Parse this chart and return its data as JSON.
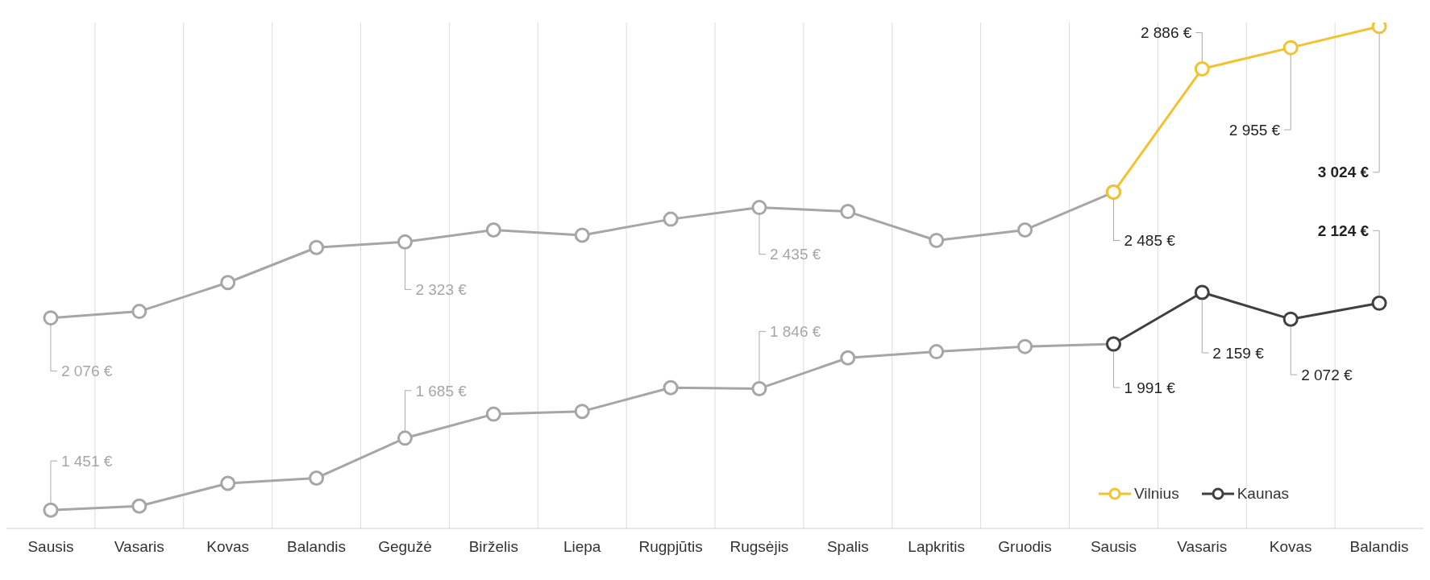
{
  "chart_data": {
    "type": "line",
    "categories": [
      "Sausis",
      "Vasaris",
      "Kovas",
      "Balandis",
      "Gegužė",
      "Birželis",
      "Liepa",
      "Rugpjūtis",
      "Rugsėjis",
      "Spalis",
      "Lapkritis",
      "Gruodis",
      "Sausis",
      "Vasaris",
      "Kovas",
      "Balandis"
    ],
    "series": [
      {
        "color": "#a6a6a6",
        "values": [
          2076,
          2097,
          2191,
          2305,
          2323,
          2362,
          2345,
          2397,
          2435,
          2422,
          2328,
          2362,
          2485,
          null,
          null,
          null
        ],
        "value_labels": [
          "2 076 €",
          null,
          null,
          null,
          "2 323 €",
          null,
          null,
          null,
          "2 435 €",
          null,
          null,
          null,
          null,
          null,
          null,
          null
        ]
      },
      {
        "color": "#a6a6a6",
        "values": [
          1451,
          1464,
          1538,
          1555,
          1685,
          1763,
          1772,
          1849,
          1846,
          1946,
          1966,
          1983,
          1991,
          null,
          null,
          null
        ],
        "value_labels": [
          "1 451 €",
          null,
          null,
          null,
          "1 685 €",
          null,
          null,
          null,
          "1 846 €",
          null,
          null,
          null,
          null,
          null,
          null,
          null
        ]
      },
      {
        "name": "Vilnius",
        "color": "#f2c230",
        "values": [
          null,
          null,
          null,
          null,
          null,
          null,
          null,
          null,
          null,
          null,
          null,
          null,
          2485,
          2886,
          2955,
          3024
        ],
        "value_labels": [
          null,
          null,
          null,
          null,
          null,
          null,
          null,
          null,
          null,
          null,
          null,
          null,
          "2 485 €",
          "2 886 €",
          "2 955 €",
          "3 024 €"
        ]
      },
      {
        "name": "Kaunas",
        "color": "#404040",
        "values": [
          null,
          null,
          null,
          null,
          null,
          null,
          null,
          null,
          null,
          null,
          null,
          null,
          1991,
          2159,
          2072,
          2124
        ],
        "value_labels": [
          null,
          null,
          null,
          null,
          null,
          null,
          null,
          null,
          null,
          null,
          null,
          null,
          "1 991 €",
          "2 159 €",
          "2 072 €",
          "2 124 €"
        ]
      }
    ],
    "marker": "circle",
    "line_style": "solid",
    "grid": "x",
    "legend": "bottom right"
  }
}
